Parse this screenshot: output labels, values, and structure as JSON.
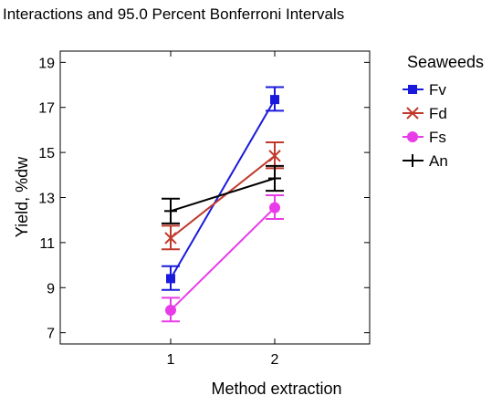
{
  "chart_data": {
    "type": "line",
    "title": "Interactions and 95.0 Percent Bonferroni Intervals",
    "xlabel": "Method extraction",
    "ylabel": "Yield, %dw",
    "categories": [
      "1",
      "2"
    ],
    "ylim": [
      6.5,
      19.5
    ],
    "yticks": [
      7,
      9,
      11,
      13,
      15,
      17,
      19
    ],
    "legend_title": "Seaweeds",
    "legend_position": "right",
    "grid": false,
    "series": [
      {
        "name": "Fv",
        "color": "#1a1adc",
        "marker": "square",
        "values": [
          9.4,
          17.35
        ],
        "lower": [
          8.9,
          16.85
        ],
        "upper": [
          9.95,
          17.9
        ]
      },
      {
        "name": "Fd",
        "color": "#c0392b",
        "marker": "x",
        "values": [
          11.2,
          14.85
        ],
        "lower": [
          10.7,
          14.3
        ],
        "upper": [
          11.75,
          15.45
        ]
      },
      {
        "name": "Fs",
        "color": "#e83ce8",
        "marker": "circle",
        "values": [
          8.0,
          12.55
        ],
        "lower": [
          7.5,
          12.05
        ],
        "upper": [
          8.55,
          13.1
        ]
      },
      {
        "name": "An",
        "color": "#000000",
        "marker": "plus",
        "values": [
          12.4,
          13.85
        ],
        "lower": [
          11.85,
          13.3
        ],
        "upper": [
          12.95,
          14.4
        ]
      }
    ]
  }
}
